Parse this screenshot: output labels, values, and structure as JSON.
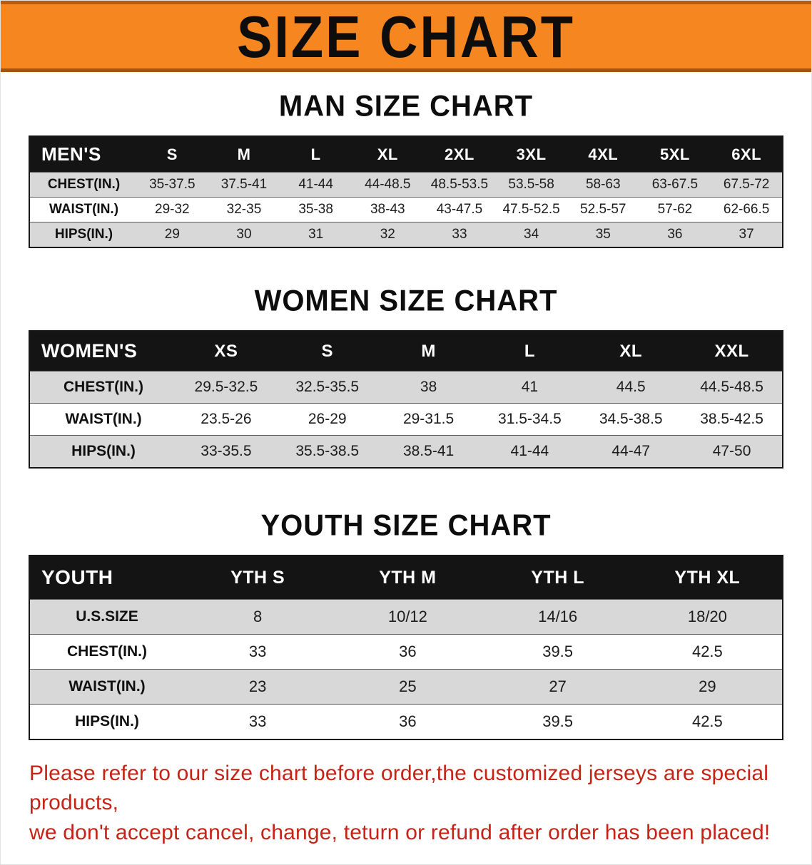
{
  "banner": {
    "title": "SIZE CHART",
    "bg_color": "#f6861f",
    "text_color": "#0d0d0d"
  },
  "sections": [
    {
      "heading": "MAN SIZE CHART",
      "table": {
        "header": [
          "MEN'S",
          "S",
          "M",
          "L",
          "XL",
          "2XL",
          "3XL",
          "4XL",
          "5XL",
          "6XL"
        ],
        "rows": [
          [
            "CHEST(IN.)",
            "35-37.5",
            "37.5-41",
            "41-44",
            "44-48.5",
            "48.5-53.5",
            "53.5-58",
            "58-63",
            "63-67.5",
            "67.5-72"
          ],
          [
            "WAIST(IN.)",
            "29-32",
            "32-35",
            "35-38",
            "38-43",
            "43-47.5",
            "47.5-52.5",
            "52.5-57",
            "57-62",
            "62-66.5"
          ],
          [
            "HIPS(IN.)",
            "29",
            "30",
            "31",
            "32",
            "33",
            "34",
            "35",
            "36",
            "37"
          ]
        ]
      }
    },
    {
      "heading": "WOMEN SIZE CHART",
      "table": {
        "header": [
          "WOMEN'S",
          "XS",
          "S",
          "M",
          "L",
          "XL",
          "XXL"
        ],
        "rows": [
          [
            "CHEST(IN.)",
            "29.5-32.5",
            "32.5-35.5",
            "38",
            "41",
            "44.5",
            "44.5-48.5"
          ],
          [
            "WAIST(IN.)",
            "23.5-26",
            "26-29",
            "29-31.5",
            "31.5-34.5",
            "34.5-38.5",
            "38.5-42.5"
          ],
          [
            "HIPS(IN.)",
            "33-35.5",
            "35.5-38.5",
            "38.5-41",
            "41-44",
            "44-47",
            "47-50"
          ]
        ]
      }
    },
    {
      "heading": "YOUTH SIZE CHART",
      "table": {
        "header": [
          "YOUTH",
          "YTH S",
          "YTH M",
          "YTH L",
          "YTH XL"
        ],
        "rows": [
          [
            "U.S.SIZE",
            "8",
            "10/12",
            "14/16",
            "18/20"
          ],
          [
            "CHEST(IN.)",
            "33",
            "36",
            "39.5",
            "42.5"
          ],
          [
            "WAIST(IN.)",
            "23",
            "25",
            "27",
            "29"
          ],
          [
            "HIPS(IN.)",
            "33",
            "36",
            "39.5",
            "42.5"
          ]
        ]
      }
    }
  ],
  "footer": {
    "lines": [
      "Please refer to our size chart before order,the customized jerseys are special products,",
      "we don't accept cancel, change, teturn or refund after order has been placed!"
    ],
    "text_color": "#c52315"
  },
  "colors": {
    "header_row_bg": "#141414",
    "stripe_row_bg": "#d8d8d8",
    "banner_orange": "#f6861f",
    "notice_red": "#c52315"
  }
}
